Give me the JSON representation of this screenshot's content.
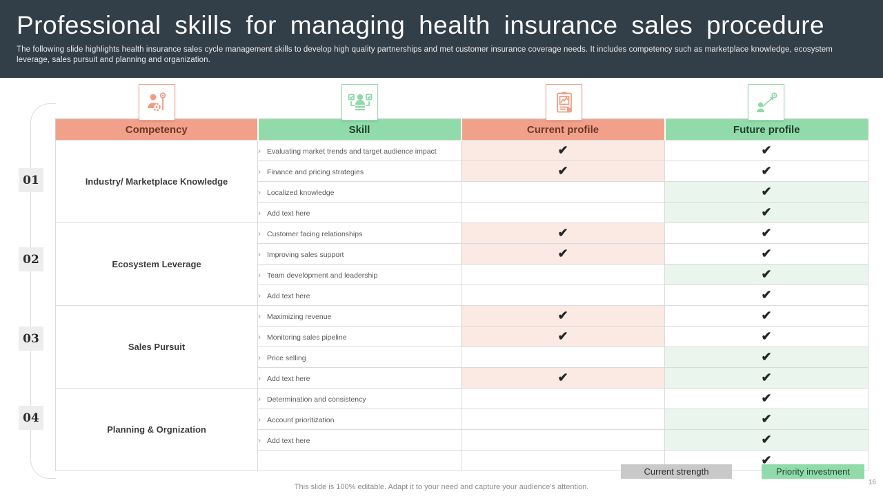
{
  "header": {
    "title": "Professional skills for managing health insurance sales procedure",
    "subtitle": "The following slide highlights health insurance sales cycle management skills to develop  high quality partnerships and met customer insurance coverage needs. It includes competency such as marketplace knowledge, ecosystem leverage, sales pursuit and planning and organization."
  },
  "glyphs": {
    "check": "✔",
    "bullet": "›"
  },
  "colors": {
    "header_bg": "#323E48",
    "salmon": "#F1A189",
    "green": "#90DBA9",
    "pink_tint": "#FBE9E3",
    "green_tint": "#E9F5ED",
    "legend_gray": "#C9C9C9"
  },
  "icons": {
    "competency": "person-gear-icon",
    "skill": "person-checklist-icon",
    "current_profile": "clipboard-chart-icon",
    "future_profile": "person-goal-icon"
  },
  "table": {
    "columns": [
      {
        "label": "Competency"
      },
      {
        "label": "Skill"
      },
      {
        "label": "Current profile"
      },
      {
        "label": "Future profile"
      }
    ],
    "groups": [
      {
        "number": "01",
        "name": "Industry/ Marketplace Knowledge",
        "rows": [
          {
            "skill": "Evaluating market trends and target audience impact",
            "current": {
              "check": true,
              "tint": "pink"
            },
            "future": {
              "check": true,
              "tint": "none"
            }
          },
          {
            "skill": "Finance and pricing strategies",
            "current": {
              "check": true,
              "tint": "pink"
            },
            "future": {
              "check": true,
              "tint": "none"
            }
          },
          {
            "skill": "Localized knowledge",
            "current": {
              "check": false,
              "tint": "none"
            },
            "future": {
              "check": true,
              "tint": "green"
            }
          },
          {
            "skill": "Add text here",
            "current": {
              "check": false,
              "tint": "none"
            },
            "future": {
              "check": true,
              "tint": "green"
            }
          }
        ]
      },
      {
        "number": "02",
        "name": "Ecosystem  Leverage",
        "rows": [
          {
            "skill": "Customer facing relationships",
            "current": {
              "check": true,
              "tint": "pink"
            },
            "future": {
              "check": true,
              "tint": "none"
            }
          },
          {
            "skill": "Improving sales support",
            "current": {
              "check": true,
              "tint": "pink"
            },
            "future": {
              "check": true,
              "tint": "none"
            }
          },
          {
            "skill": "Team development and leadership",
            "current": {
              "check": false,
              "tint": "none"
            },
            "future": {
              "check": true,
              "tint": "green"
            }
          },
          {
            "skill": "Add text here",
            "current": {
              "check": false,
              "tint": "none"
            },
            "future": {
              "check": true,
              "tint": "none"
            }
          }
        ]
      },
      {
        "number": "03",
        "name": "Sales Pursuit",
        "rows": [
          {
            "skill": "Maximizing revenue",
            "current": {
              "check": true,
              "tint": "pink"
            },
            "future": {
              "check": true,
              "tint": "none"
            }
          },
          {
            "skill": "Monitoring sales pipeline",
            "current": {
              "check": true,
              "tint": "pink"
            },
            "future": {
              "check": true,
              "tint": "none"
            }
          },
          {
            "skill": "Price selling",
            "current": {
              "check": false,
              "tint": "none"
            },
            "future": {
              "check": true,
              "tint": "green"
            }
          },
          {
            "skill": "Add text here",
            "current": {
              "check": true,
              "tint": "pink"
            },
            "future": {
              "check": true,
              "tint": "green"
            }
          }
        ]
      },
      {
        "number": "04",
        "name": "Planning & Orgnization",
        "rows": [
          {
            "skill": "Determination  and consistency",
            "current": {
              "check": false,
              "tint": "none"
            },
            "future": {
              "check": true,
              "tint": "none"
            }
          },
          {
            "skill": "Account prioritization",
            "current": {
              "check": false,
              "tint": "none"
            },
            "future": {
              "check": true,
              "tint": "green"
            }
          },
          {
            "skill": "Add text here",
            "current": {
              "check": false,
              "tint": "none"
            },
            "future": {
              "check": true,
              "tint": "green"
            }
          },
          {
            "skill": "",
            "current": {
              "check": false,
              "tint": "none"
            },
            "future": {
              "check": true,
              "tint": "none"
            }
          }
        ]
      }
    ]
  },
  "legend": {
    "current_strength": "Current strength",
    "priority_investment": "Priority investment"
  },
  "footer": {
    "note": "This slide is 100% editable. Adapt it to your need and capture your audience's attention.",
    "page_number": "16"
  }
}
